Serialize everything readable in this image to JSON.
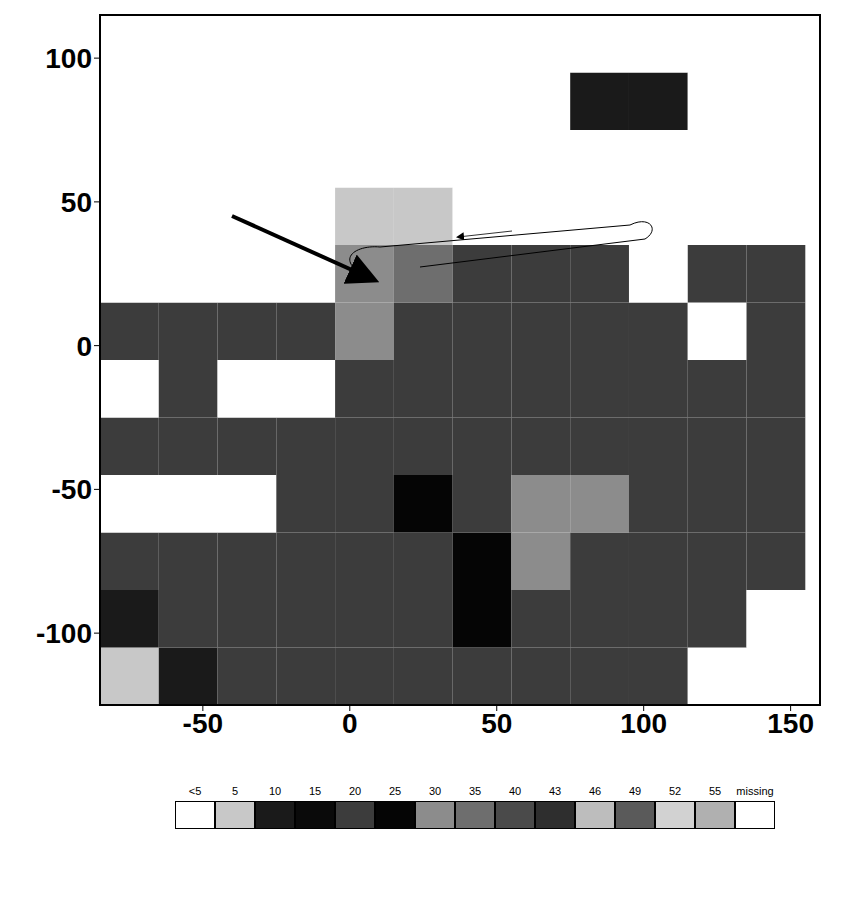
{
  "chart_data": {
    "type": "heatmap",
    "xlim": [
      -85,
      160
    ],
    "ylim": [
      -125,
      115
    ],
    "xticks": [
      -50,
      0,
      50,
      100,
      150
    ],
    "yticks": [
      -100,
      -50,
      0,
      50,
      100
    ],
    "cells": {
      "x_edges": [
        -85,
        -65,
        -45,
        -25,
        -5,
        15,
        35,
        55,
        75,
        95,
        115,
        135,
        155
      ],
      "y_edges": [
        -125,
        -105,
        -85,
        -65,
        -45,
        -25,
        -5,
        15,
        35,
        55,
        75,
        95,
        115
      ],
      "values": [
        [
          5,
          10,
          20,
          20,
          20,
          20,
          20,
          20,
          20,
          20,
          0,
          0
        ],
        [
          10,
          20,
          20,
          20,
          20,
          20,
          25,
          20,
          20,
          20,
          20,
          0
        ],
        [
          20,
          20,
          20,
          20,
          20,
          20,
          25,
          30,
          20,
          20,
          20,
          20
        ],
        [
          0,
          0,
          0,
          20,
          20,
          25,
          20,
          30,
          30,
          20,
          20,
          20
        ],
        [
          20,
          20,
          20,
          20,
          20,
          20,
          20,
          20,
          20,
          20,
          20,
          20
        ],
        [
          0,
          20,
          0,
          0,
          20,
          20,
          20,
          20,
          20,
          20,
          20,
          20
        ],
        [
          20,
          20,
          20,
          20,
          30,
          20,
          20,
          20,
          20,
          20,
          0,
          20
        ],
        [
          0,
          0,
          0,
          0,
          30,
          35,
          20,
          20,
          20,
          0,
          20,
          20
        ],
        [
          0,
          0,
          0,
          0,
          5,
          5,
          0,
          0,
          0,
          0,
          0,
          0
        ],
        [
          0,
          0,
          0,
          0,
          0,
          0,
          0,
          0,
          0,
          0,
          0,
          0
        ],
        [
          0,
          0,
          0,
          0,
          0,
          0,
          0,
          0,
          10,
          10,
          0,
          0
        ],
        [
          0,
          0,
          0,
          0,
          0,
          0,
          0,
          0,
          0,
          0,
          0,
          0
        ]
      ]
    },
    "colorbar": {
      "labels": [
        "<5",
        "5",
        "10",
        "15",
        "20",
        "25",
        "30",
        "35",
        "40",
        "43",
        "46",
        "49",
        "52",
        "55",
        "missing"
      ],
      "colors": [
        "#ffffff",
        "#c8c8c8",
        "#1a1a1a",
        "#0a0a0a",
        "#3c3c3c",
        "#050505",
        "#8c8c8c",
        "#6e6e6e",
        "#4a4a4a",
        "#2e2e2e",
        "#bdbdbd",
        "#5a5a5a",
        "#d2d2d2",
        "#b0b0b0",
        "#ffffff"
      ]
    }
  }
}
